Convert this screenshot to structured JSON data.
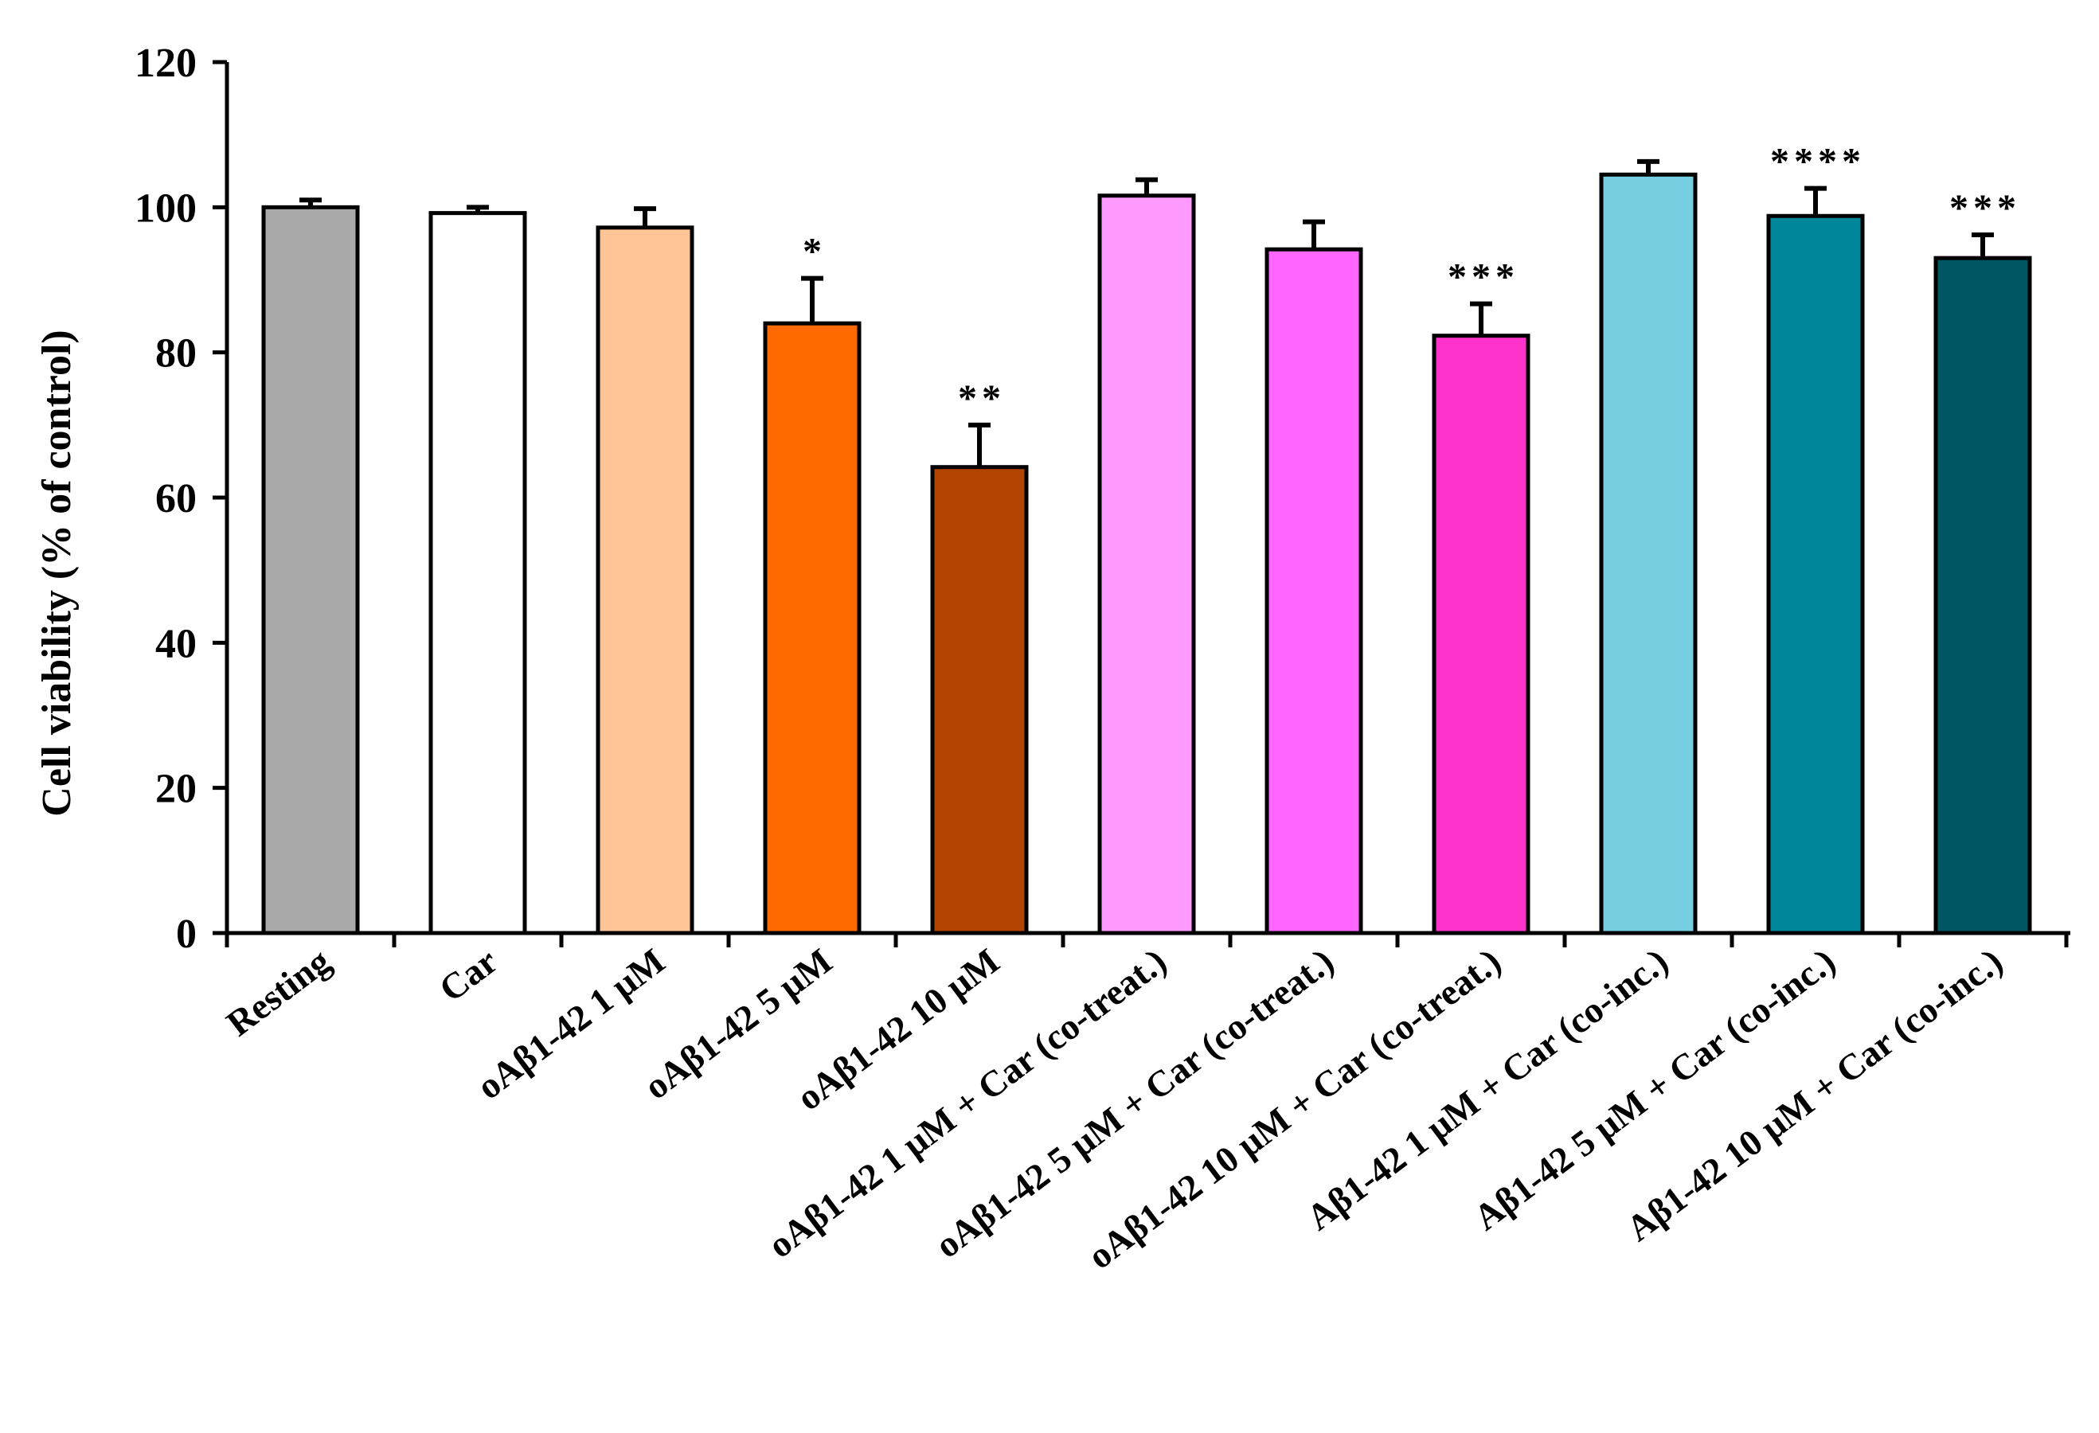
{
  "chart_data": {
    "type": "bar",
    "title": "",
    "xlabel": "",
    "ylabel": "Cell viability (% of control)",
    "ylim": [
      0,
      120
    ],
    "yticks": [
      0,
      20,
      40,
      60,
      80,
      100,
      120
    ],
    "grid": false,
    "categories": [
      "Resting",
      "Car",
      "oAβ1-42 1 μM",
      "oAβ1-42 5 μM",
      "oAβ1-42 10 μM",
      "oAβ1-42 1 μM + Car (co-treat.)",
      "oAβ1-42 5 μM + Car (co-treat.)",
      "oAβ1-42 10 μM + Car (co-treat.)",
      "Aβ1-42 1 μM + Car (co-inc.)",
      "Aβ1-42 5 μM + Car (co-inc.)",
      "Aβ1-42 10 μM + Car (co-inc.)"
    ],
    "values": [
      100,
      99.2,
      97.2,
      84,
      64.2,
      101.6,
      94.2,
      82.3,
      104.5,
      98.8,
      93
    ],
    "errors": [
      1.0,
      0.8,
      2.6,
      6.2,
      5.8,
      2.2,
      3.8,
      4.4,
      1.8,
      3.8,
      3.2
    ],
    "significance": [
      "",
      "",
      "",
      "*",
      "**",
      "",
      "",
      "***",
      "",
      "****",
      "***"
    ],
    "colors": [
      "#a9a9a9",
      "#ffffff",
      "#ffc597",
      "#ff6a00",
      "#b04400",
      "#ff9bff",
      "#ff66ff",
      "#ff33cc",
      "#76cfe0",
      "#00869a",
      "#005663"
    ]
  }
}
